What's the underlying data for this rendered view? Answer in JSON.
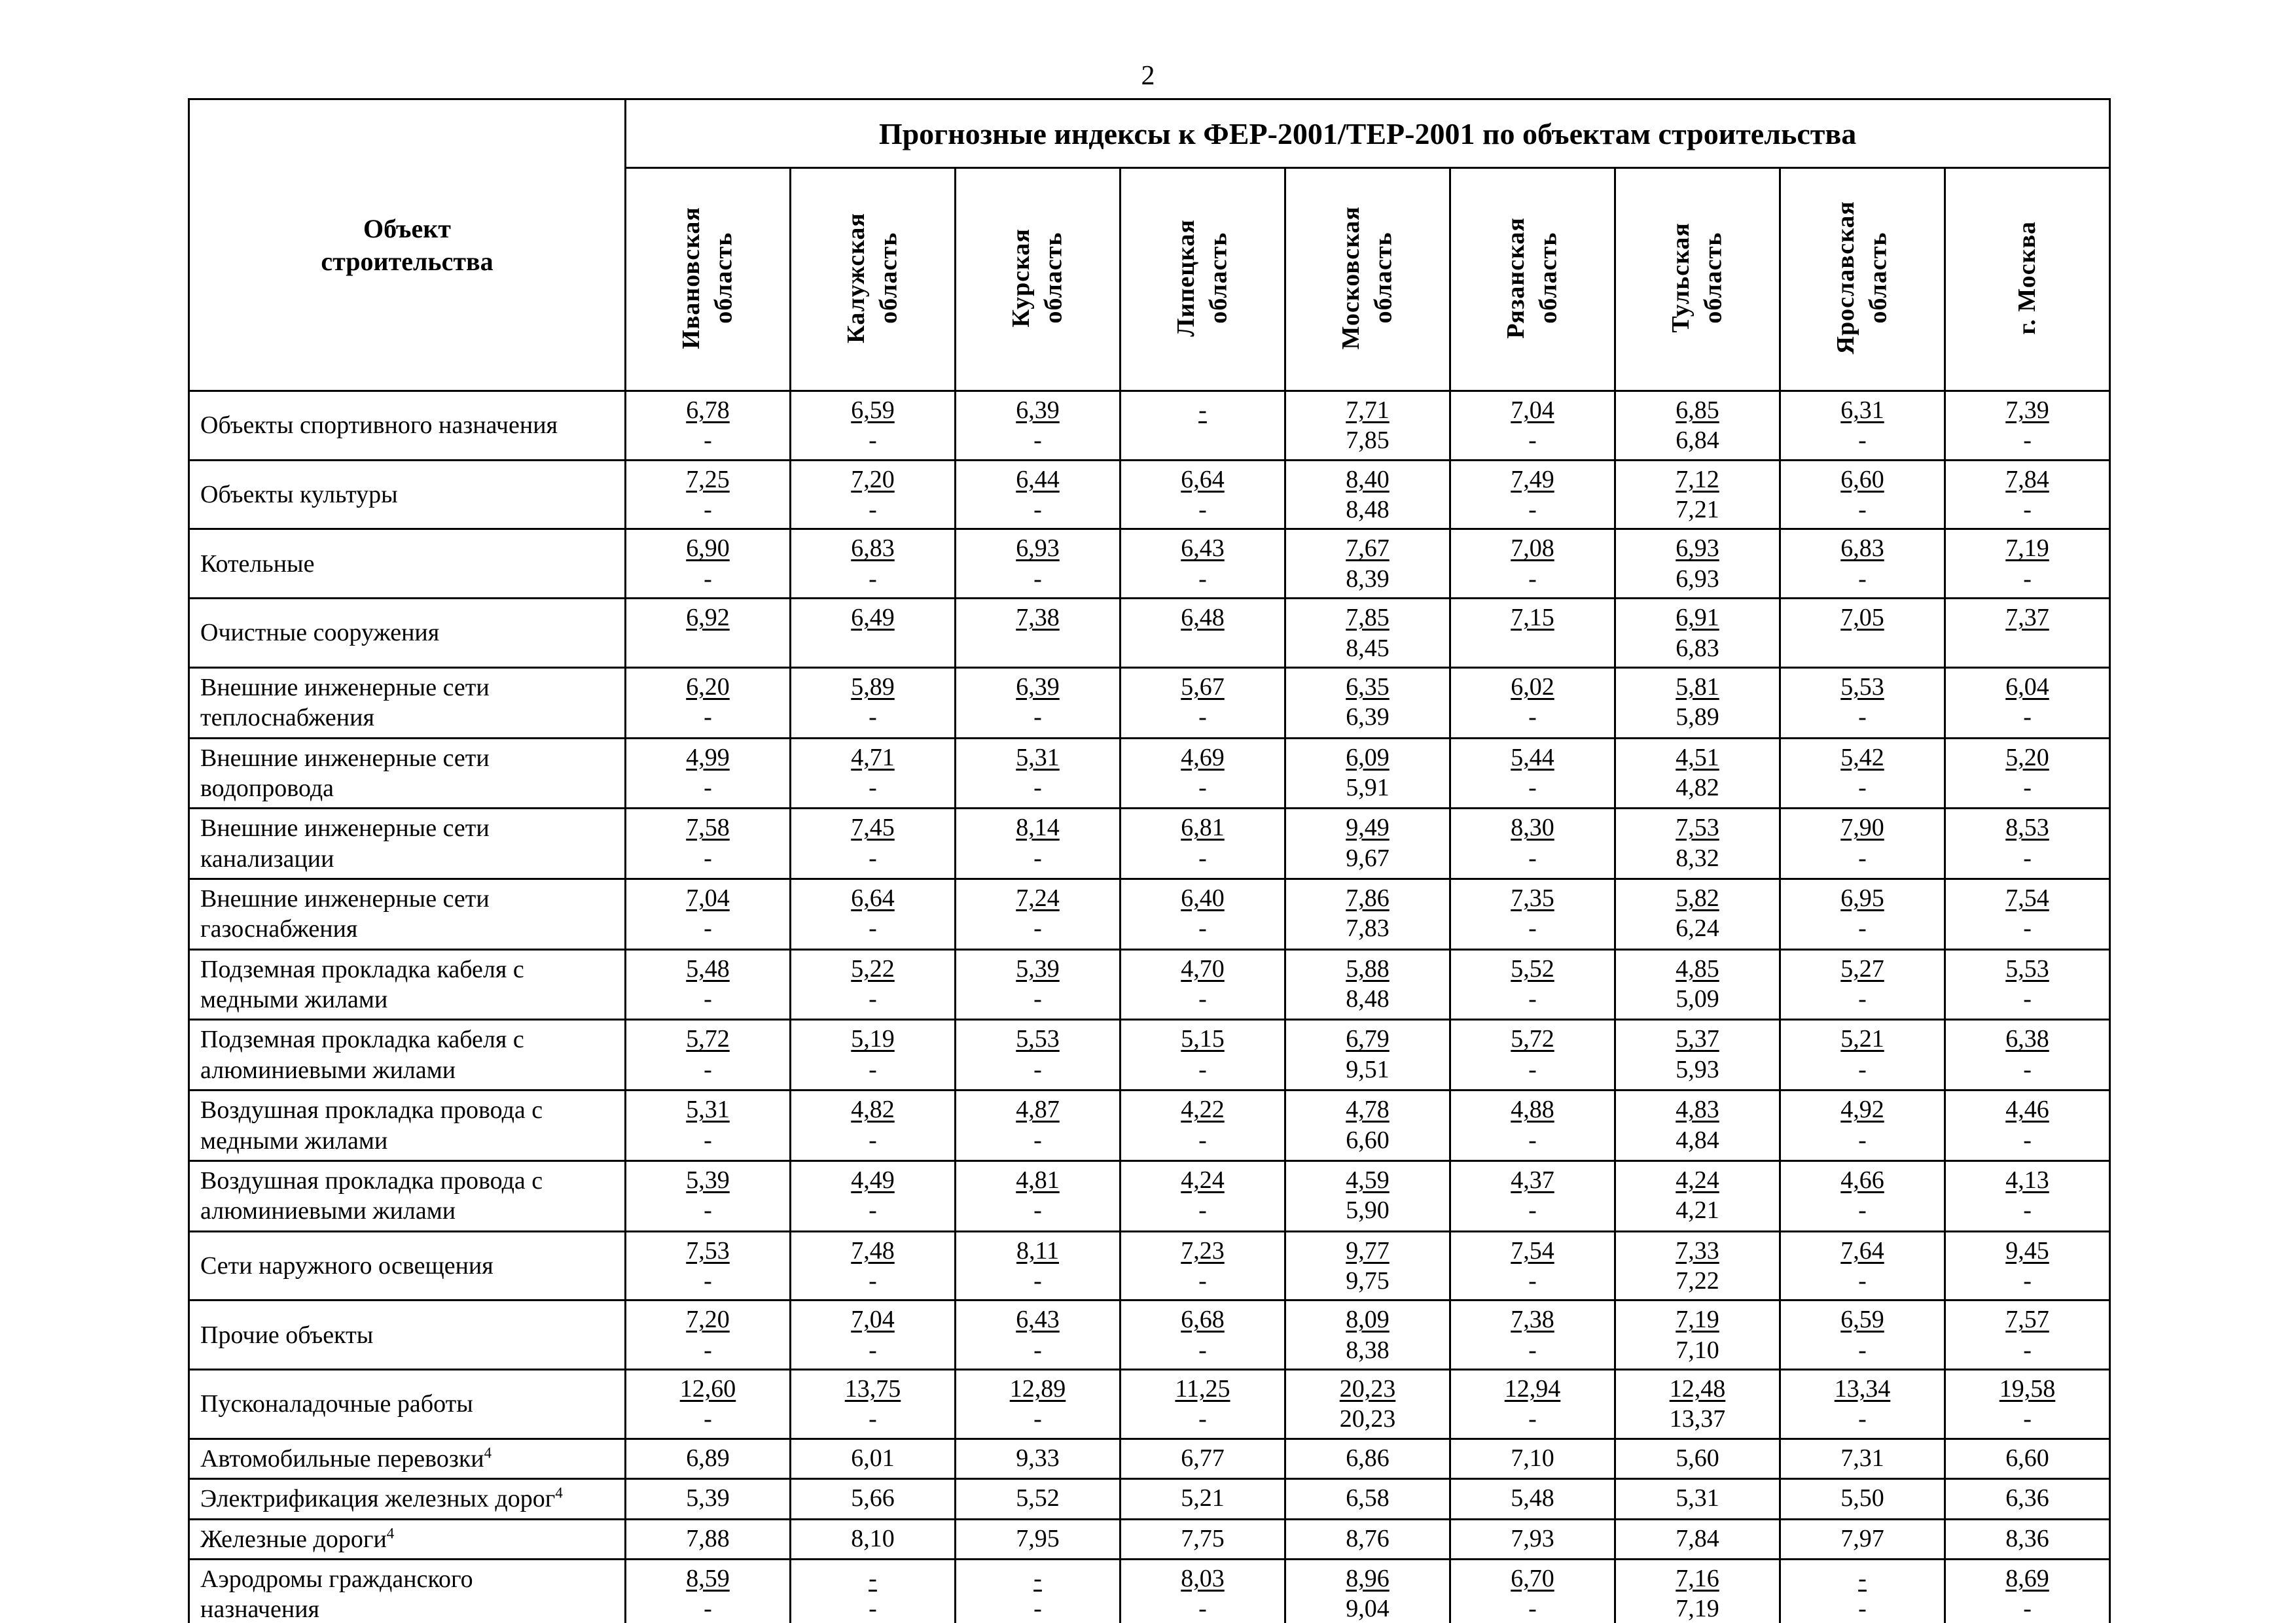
{
  "page_number": "2",
  "table": {
    "title": "Прогнозные индексы к ФЕР-2001/ТЕР-2001 по объектам строительства",
    "row_header": "Объект\nстроительства",
    "columns": [
      "Ивановская\nобласть",
      "Калужская\nобласть",
      "Курская\nобласть",
      "Липецкая\nобласть",
      "Московская\nобласть",
      "Рязанская\nобласть",
      "Тульская\nобласть",
      "Ярославская\nобласть",
      "г. Москва"
    ],
    "rows": [
      {
        "label": "Объекты спортивного назначения",
        "sup": "",
        "u": true,
        "cells": [
          [
            "6,78",
            "-"
          ],
          [
            "6,59",
            "-"
          ],
          [
            "6,39",
            "-"
          ],
          [
            "-"
          ],
          [
            "7,71",
            "7,85"
          ],
          [
            "7,04",
            "-"
          ],
          [
            "6,85",
            "6,84"
          ],
          [
            "6,31",
            "-"
          ],
          [
            "7,39",
            "-"
          ]
        ]
      },
      {
        "label": "Объекты культуры",
        "sup": "",
        "u": true,
        "cells": [
          [
            "7,25",
            "-"
          ],
          [
            "7,20",
            "-"
          ],
          [
            "6,44",
            "-"
          ],
          [
            "6,64",
            "-"
          ],
          [
            "8,40",
            "8,48"
          ],
          [
            "7,49",
            "-"
          ],
          [
            "7,12",
            "7,21"
          ],
          [
            "6,60",
            "-"
          ],
          [
            "7,84",
            "-"
          ]
        ]
      },
      {
        "label": "Котельные",
        "sup": "",
        "u": true,
        "cells": [
          [
            "6,90",
            "-"
          ],
          [
            "6,83",
            "-"
          ],
          [
            "6,93",
            "-"
          ],
          [
            "6,43",
            "-"
          ],
          [
            "7,67",
            "8,39"
          ],
          [
            "7,08",
            "-"
          ],
          [
            "6,93",
            "6,93"
          ],
          [
            "6,83",
            "-"
          ],
          [
            "7,19",
            "-"
          ]
        ]
      },
      {
        "label": "Очистные сооружения",
        "sup": "",
        "u": true,
        "cells": [
          [
            "6,92"
          ],
          [
            "6,49"
          ],
          [
            "7,38"
          ],
          [
            "6,48"
          ],
          [
            "7,85",
            "8,45"
          ],
          [
            "7,15"
          ],
          [
            "6,91",
            "6,83"
          ],
          [
            "7,05"
          ],
          [
            "7,37"
          ]
        ]
      },
      {
        "label": "Внешние инженерные сети\nтеплоснабжения",
        "sup": "",
        "u": true,
        "cells": [
          [
            "6,20",
            "-"
          ],
          [
            "5,89",
            "-"
          ],
          [
            "6,39",
            "-"
          ],
          [
            "5,67",
            "-"
          ],
          [
            "6,35",
            "6,39"
          ],
          [
            "6,02",
            "-"
          ],
          [
            "5,81",
            "5,89"
          ],
          [
            "5,53",
            "-"
          ],
          [
            "6,04",
            "-"
          ]
        ]
      },
      {
        "label": "Внешние инженерные сети\nводопровода",
        "sup": "",
        "u": true,
        "cells": [
          [
            "4,99",
            "-"
          ],
          [
            "4,71",
            "-"
          ],
          [
            "5,31",
            "-"
          ],
          [
            "4,69",
            "-"
          ],
          [
            "6,09",
            "5,91"
          ],
          [
            "5,44",
            "-"
          ],
          [
            "4,51",
            "4,82"
          ],
          [
            "5,42",
            "-"
          ],
          [
            "5,20",
            "-"
          ]
        ]
      },
      {
        "label": "Внешние инженерные сети\nканализации",
        "sup": "",
        "u": true,
        "cells": [
          [
            "7,58",
            "-"
          ],
          [
            "7,45",
            "-"
          ],
          [
            "8,14",
            "-"
          ],
          [
            "6,81",
            "-"
          ],
          [
            "9,49",
            "9,67"
          ],
          [
            "8,30",
            "-"
          ],
          [
            "7,53",
            "8,32"
          ],
          [
            "7,90",
            "-"
          ],
          [
            "8,53",
            "-"
          ]
        ]
      },
      {
        "label": "Внешние инженерные сети\nгазоснабжения",
        "sup": "",
        "u": true,
        "cells": [
          [
            "7,04",
            "-"
          ],
          [
            "6,64",
            "-"
          ],
          [
            "7,24",
            "-"
          ],
          [
            "6,40",
            "-"
          ],
          [
            "7,86",
            "7,83"
          ],
          [
            "7,35",
            "-"
          ],
          [
            "5,82",
            "6,24"
          ],
          [
            "6,95",
            "-"
          ],
          [
            "7,54",
            "-"
          ]
        ]
      },
      {
        "label": "Подземная прокладка кабеля с\nмедными жилами",
        "sup": "",
        "u": true,
        "cells": [
          [
            "5,48",
            "-"
          ],
          [
            "5,22",
            "-"
          ],
          [
            "5,39",
            "-"
          ],
          [
            "4,70",
            "-"
          ],
          [
            "5,88",
            "8,48"
          ],
          [
            "5,52",
            "-"
          ],
          [
            "4,85",
            "5,09"
          ],
          [
            "5,27",
            "-"
          ],
          [
            "5,53",
            "-"
          ]
        ]
      },
      {
        "label": "Подземная прокладка кабеля с\nалюминиевыми жилами",
        "sup": "",
        "u": true,
        "cells": [
          [
            "5,72",
            "-"
          ],
          [
            "5,19",
            "-"
          ],
          [
            "5,53",
            "-"
          ],
          [
            "5,15",
            "-"
          ],
          [
            "6,79",
            "9,51"
          ],
          [
            "5,72",
            "-"
          ],
          [
            "5,37",
            "5,93"
          ],
          [
            "5,21",
            "-"
          ],
          [
            "6,38",
            "-"
          ]
        ]
      },
      {
        "label": "Воздушная прокладка провода с\nмедными жилами",
        "sup": "",
        "u": true,
        "cells": [
          [
            "5,31",
            "-"
          ],
          [
            "4,82",
            "-"
          ],
          [
            "4,87",
            "-"
          ],
          [
            "4,22",
            "-"
          ],
          [
            "4,78",
            "6,60"
          ],
          [
            "4,88",
            "-"
          ],
          [
            "4,83",
            "4,84"
          ],
          [
            "4,92",
            "-"
          ],
          [
            "4,46",
            "-"
          ]
        ]
      },
      {
        "label": "Воздушная прокладка провода с\nалюминиевыми жилами",
        "sup": "",
        "u": true,
        "cells": [
          [
            "5,39",
            "-"
          ],
          [
            "4,49",
            "-"
          ],
          [
            "4,81",
            "-"
          ],
          [
            "4,24",
            "-"
          ],
          [
            "4,59",
            "5,90"
          ],
          [
            "4,37",
            "-"
          ],
          [
            "4,24",
            "4,21"
          ],
          [
            "4,66",
            "-"
          ],
          [
            "4,13",
            "-"
          ]
        ]
      },
      {
        "label": "Сети наружного освещения",
        "sup": "",
        "u": true,
        "cells": [
          [
            "7,53",
            "-"
          ],
          [
            "7,48",
            "-"
          ],
          [
            "8,11",
            "-"
          ],
          [
            "7,23",
            "-"
          ],
          [
            "9,77",
            "9,75"
          ],
          [
            "7,54",
            "-"
          ],
          [
            "7,33",
            "7,22"
          ],
          [
            "7,64",
            "-"
          ],
          [
            "9,45",
            "-"
          ]
        ]
      },
      {
        "label": "Прочие объекты",
        "sup": "",
        "u": true,
        "cells": [
          [
            "7,20",
            "-"
          ],
          [
            "7,04",
            "-"
          ],
          [
            "6,43",
            "-"
          ],
          [
            "6,68",
            "-"
          ],
          [
            "8,09",
            "8,38"
          ],
          [
            "7,38",
            "-"
          ],
          [
            "7,19",
            "7,10"
          ],
          [
            "6,59",
            "-"
          ],
          [
            "7,57",
            "-"
          ]
        ]
      },
      {
        "label": "Пусконаладочные работы",
        "sup": "",
        "u": true,
        "cells": [
          [
            "12,60",
            "-"
          ],
          [
            "13,75",
            "-"
          ],
          [
            "12,89",
            "-"
          ],
          [
            "11,25",
            "-"
          ],
          [
            "20,23",
            "20,23"
          ],
          [
            "12,94",
            "-"
          ],
          [
            "12,48",
            "13,37"
          ],
          [
            "13,34",
            "-"
          ],
          [
            "19,58",
            "-"
          ]
        ]
      },
      {
        "label": "Автомобильные перевозки",
        "sup": "4",
        "u": false,
        "cells": [
          [
            "6,89"
          ],
          [
            "6,01"
          ],
          [
            "9,33"
          ],
          [
            "6,77"
          ],
          [
            "6,86"
          ],
          [
            "7,10"
          ],
          [
            "5,60"
          ],
          [
            "7,31"
          ],
          [
            "6,60"
          ]
        ]
      },
      {
        "label": "Электрификация железных дорог",
        "sup": "4",
        "u": false,
        "cells": [
          [
            "5,39"
          ],
          [
            "5,66"
          ],
          [
            "5,52"
          ],
          [
            "5,21"
          ],
          [
            "6,58"
          ],
          [
            "5,48"
          ],
          [
            "5,31"
          ],
          [
            "5,50"
          ],
          [
            "6,36"
          ]
        ]
      },
      {
        "label": "Железные дороги",
        "sup": "4",
        "u": false,
        "cells": [
          [
            "7,88"
          ],
          [
            "8,10"
          ],
          [
            "7,95"
          ],
          [
            "7,75"
          ],
          [
            "8,76"
          ],
          [
            "7,93"
          ],
          [
            "7,84"
          ],
          [
            "7,97"
          ],
          [
            "8,36"
          ]
        ]
      },
      {
        "label": "Аэродромы гражданского\nназначения",
        "sup": "",
        "u": true,
        "cells": [
          [
            "8,59",
            "-"
          ],
          [
            "-",
            "-"
          ],
          [
            "-",
            "-"
          ],
          [
            "8,03",
            "-"
          ],
          [
            "8,96",
            "9,04"
          ],
          [
            "6,70",
            "-"
          ],
          [
            "7,16",
            "7,19"
          ],
          [
            "-",
            "-"
          ],
          [
            "8,69",
            "-"
          ]
        ]
      }
    ]
  }
}
